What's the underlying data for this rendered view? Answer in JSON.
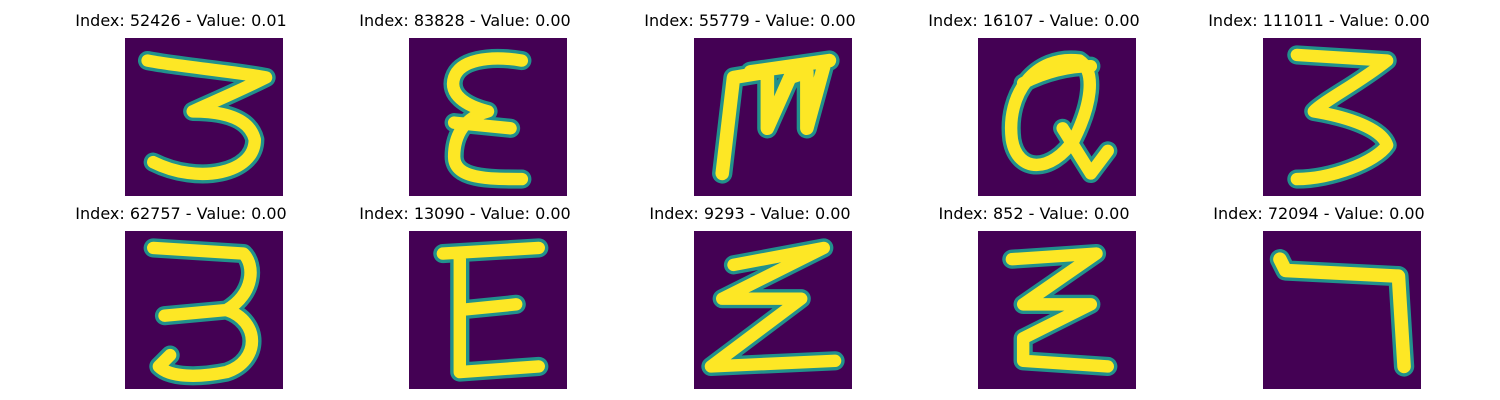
{
  "colors": {
    "background": "#440154",
    "stroke_mid": "#21918c",
    "stroke_core": "#fde725"
  },
  "panels": [
    {
      "title": "Index: 52426 - Value: 0.01",
      "glyph": "3"
    },
    {
      "title": "Index: 83828 - Value: 0.00",
      "glyph": "ε"
    },
    {
      "title": "Index: 55779 - Value: 0.00",
      "glyph": "M"
    },
    {
      "title": "Index: 16107 - Value: 0.00",
      "glyph": "Q"
    },
    {
      "title": "Index: 111011 - Value: 0.00",
      "glyph": "3"
    },
    {
      "title": "Index: 62757 - Value: 0.00",
      "glyph": "3"
    },
    {
      "title": "Index: 13090 - Value: 0.00",
      "glyph": "E"
    },
    {
      "title": "Index: 9293 - Value: 0.00",
      "glyph": "Z"
    },
    {
      "title": "Index: 852 - Value: 0.00",
      "glyph": "Z"
    },
    {
      "title": "Index: 72094 - Value: 0.00",
      "glyph": "7"
    }
  ]
}
